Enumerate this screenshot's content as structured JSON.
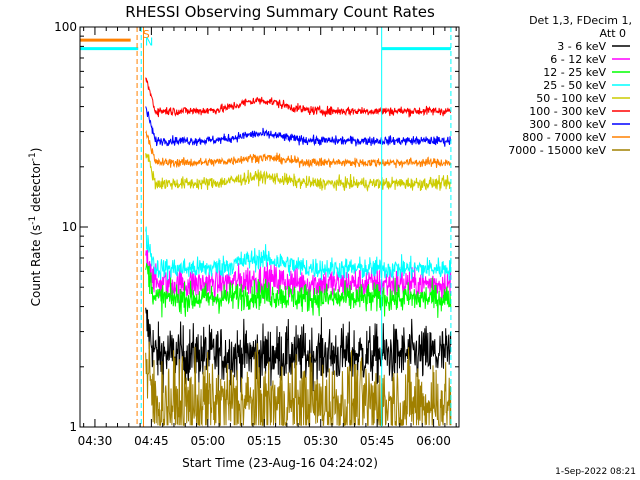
{
  "chart_data": {
    "type": "line",
    "title": "RHESSI Observing Summary Count Rates",
    "xlabel": "Start Time (23-Aug-16 04:24:02)",
    "ylabel_main": "Count Rate (s",
    "ylabel_sup1": "-1",
    "ylabel_mid": " detector",
    "ylabel_sup2": "-1",
    "ylabel_end": ")",
    "y_scale": "log",
    "ylim": [
      1,
      100
    ],
    "y_ticks": [
      {
        "value": 1,
        "label": "1"
      },
      {
        "value": 10,
        "label": "10"
      },
      {
        "value": 100,
        "label": "100"
      }
    ],
    "xlim_minutes": [
      -3.97,
      96.75
    ],
    "x_ticks": [
      {
        "minutes": 0,
        "label": "04:30"
      },
      {
        "minutes": 15,
        "label": "04:45"
      },
      {
        "minutes": 30,
        "label": "05:00"
      },
      {
        "minutes": 45,
        "label": "05:15"
      },
      {
        "minutes": 60,
        "label": "05:30"
      },
      {
        "minutes": 75,
        "label": "05:45"
      },
      {
        "minutes": 90,
        "label": "06:00"
      }
    ],
    "legend_header": [
      "Det 1,3, FDecim 1,",
      "Att 0"
    ],
    "legend_position": "right",
    "series": [
      {
        "name": "3 - 6 keV",
        "color": "#000000",
        "level": 2.3,
        "noise": 0.32,
        "bump": 0.0,
        "floor": 1.0
      },
      {
        "name": "6 - 12 keV",
        "color": "#ff00ff",
        "level": 5.2,
        "noise": 0.18,
        "bump": 0.05,
        "floor": 0
      },
      {
        "name": "12 - 25 keV",
        "color": "#00ff00",
        "level": 4.4,
        "noise": 0.16,
        "bump": 0.05,
        "floor": 0
      },
      {
        "name": "25 - 50 keV",
        "color": "#00ffff",
        "level": 6.2,
        "noise": 0.12,
        "bump": 0.12,
        "floor": 0
      },
      {
        "name": "50 - 100 keV",
        "color": "#cccc00",
        "level": 16.5,
        "noise": 0.07,
        "bump": 0.08,
        "floor": 0
      },
      {
        "name": "100 - 300 keV",
        "color": "#ff0000",
        "level": 38.0,
        "noise": 0.05,
        "bump": 0.13,
        "floor": 0
      },
      {
        "name": "300 - 800 keV",
        "color": "#0000ff",
        "level": 27.0,
        "noise": 0.05,
        "bump": 0.08,
        "floor": 0
      },
      {
        "name": "800 - 7000 keV",
        "color": "#ff8000",
        "level": 21.0,
        "noise": 0.05,
        "bump": 0.06,
        "floor": 0
      },
      {
        "name": "7000 - 15000 keV",
        "color": "#a08000",
        "level": 1.3,
        "noise": 0.5,
        "bump": 0.0,
        "floor": 1.0
      }
    ],
    "data_start_minutes": 13.5,
    "data_end_minutes": 94.6,
    "bump_center_minutes": 44,
    "attenuator_bars": {
      "orange": {
        "value": 86,
        "x_start_minutes": -3.97,
        "x_end_minutes": 9.5,
        "color": "#ff8000"
      },
      "cyan_left": {
        "value": 78,
        "x_start_minutes": -3.97,
        "x_end_minutes": 11.5,
        "color": "#00ffff"
      },
      "cyan_right": {
        "value": 78,
        "x_start_minutes": 76.2,
        "x_end_minutes": 94.6,
        "color": "#00ffff"
      }
    },
    "markers": [
      {
        "label": "S",
        "minutes": 12.7,
        "value": 88,
        "color": "#ff8000"
      },
      {
        "label": "N",
        "minutes": 13.3,
        "value": 81,
        "color": "#00ffff"
      }
    ],
    "vertical_lines": [
      {
        "minutes": 11.2,
        "color": "#ff8000",
        "style": "dashed"
      },
      {
        "minutes": 12.3,
        "color": "#00ffff",
        "style": "dashed"
      },
      {
        "minutes": 12.9,
        "color": "#ff8000",
        "style": "solid"
      },
      {
        "minutes": 76.2,
        "color": "#00ffff",
        "style": "solid"
      },
      {
        "minutes": 94.6,
        "color": "#00ffff",
        "style": "dashed"
      }
    ]
  },
  "footer": {
    "date_stamp": "1-Sep-2022 08:21"
  }
}
